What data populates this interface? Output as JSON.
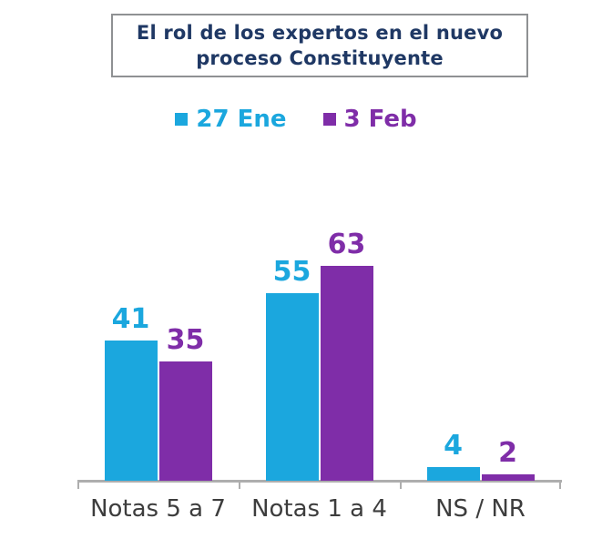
{
  "title": {
    "line1": "El rol de los expertos en el nuevo",
    "line2": "proceso Constituyente"
  },
  "legend": [
    {
      "label": "27 Ene",
      "color": "#1ba7de"
    },
    {
      "label": "3 Feb",
      "color": "#7f2da8"
    }
  ],
  "colors": {
    "series1": "#1ba7de",
    "series2": "#7f2da8",
    "title_text": "#1f3864",
    "title_border": "#8f9193",
    "axis_line": "#aeaeae",
    "category_label": "#3d3d3d",
    "background": "#ffffff"
  },
  "chart_data": {
    "type": "bar",
    "title": "El rol de los expertos en el nuevo proceso Constituyente",
    "categories": [
      "Notas 5 a 7",
      "Notas 1 a 4",
      "NS / NR"
    ],
    "series": [
      {
        "name": "27 Ene",
        "color": "#1ba7de",
        "values": [
          41,
          55,
          4
        ]
      },
      {
        "name": "3 Feb",
        "color": "#7f2da8",
        "values": [
          35,
          63,
          2
        ]
      }
    ],
    "value_labels": true,
    "ylim": [
      0,
      63
    ],
    "xlabel": "",
    "ylabel": "",
    "grid": false,
    "y_axis_visible": false,
    "legend_position": "top",
    "tick_marks": "category-boundaries-outward"
  }
}
